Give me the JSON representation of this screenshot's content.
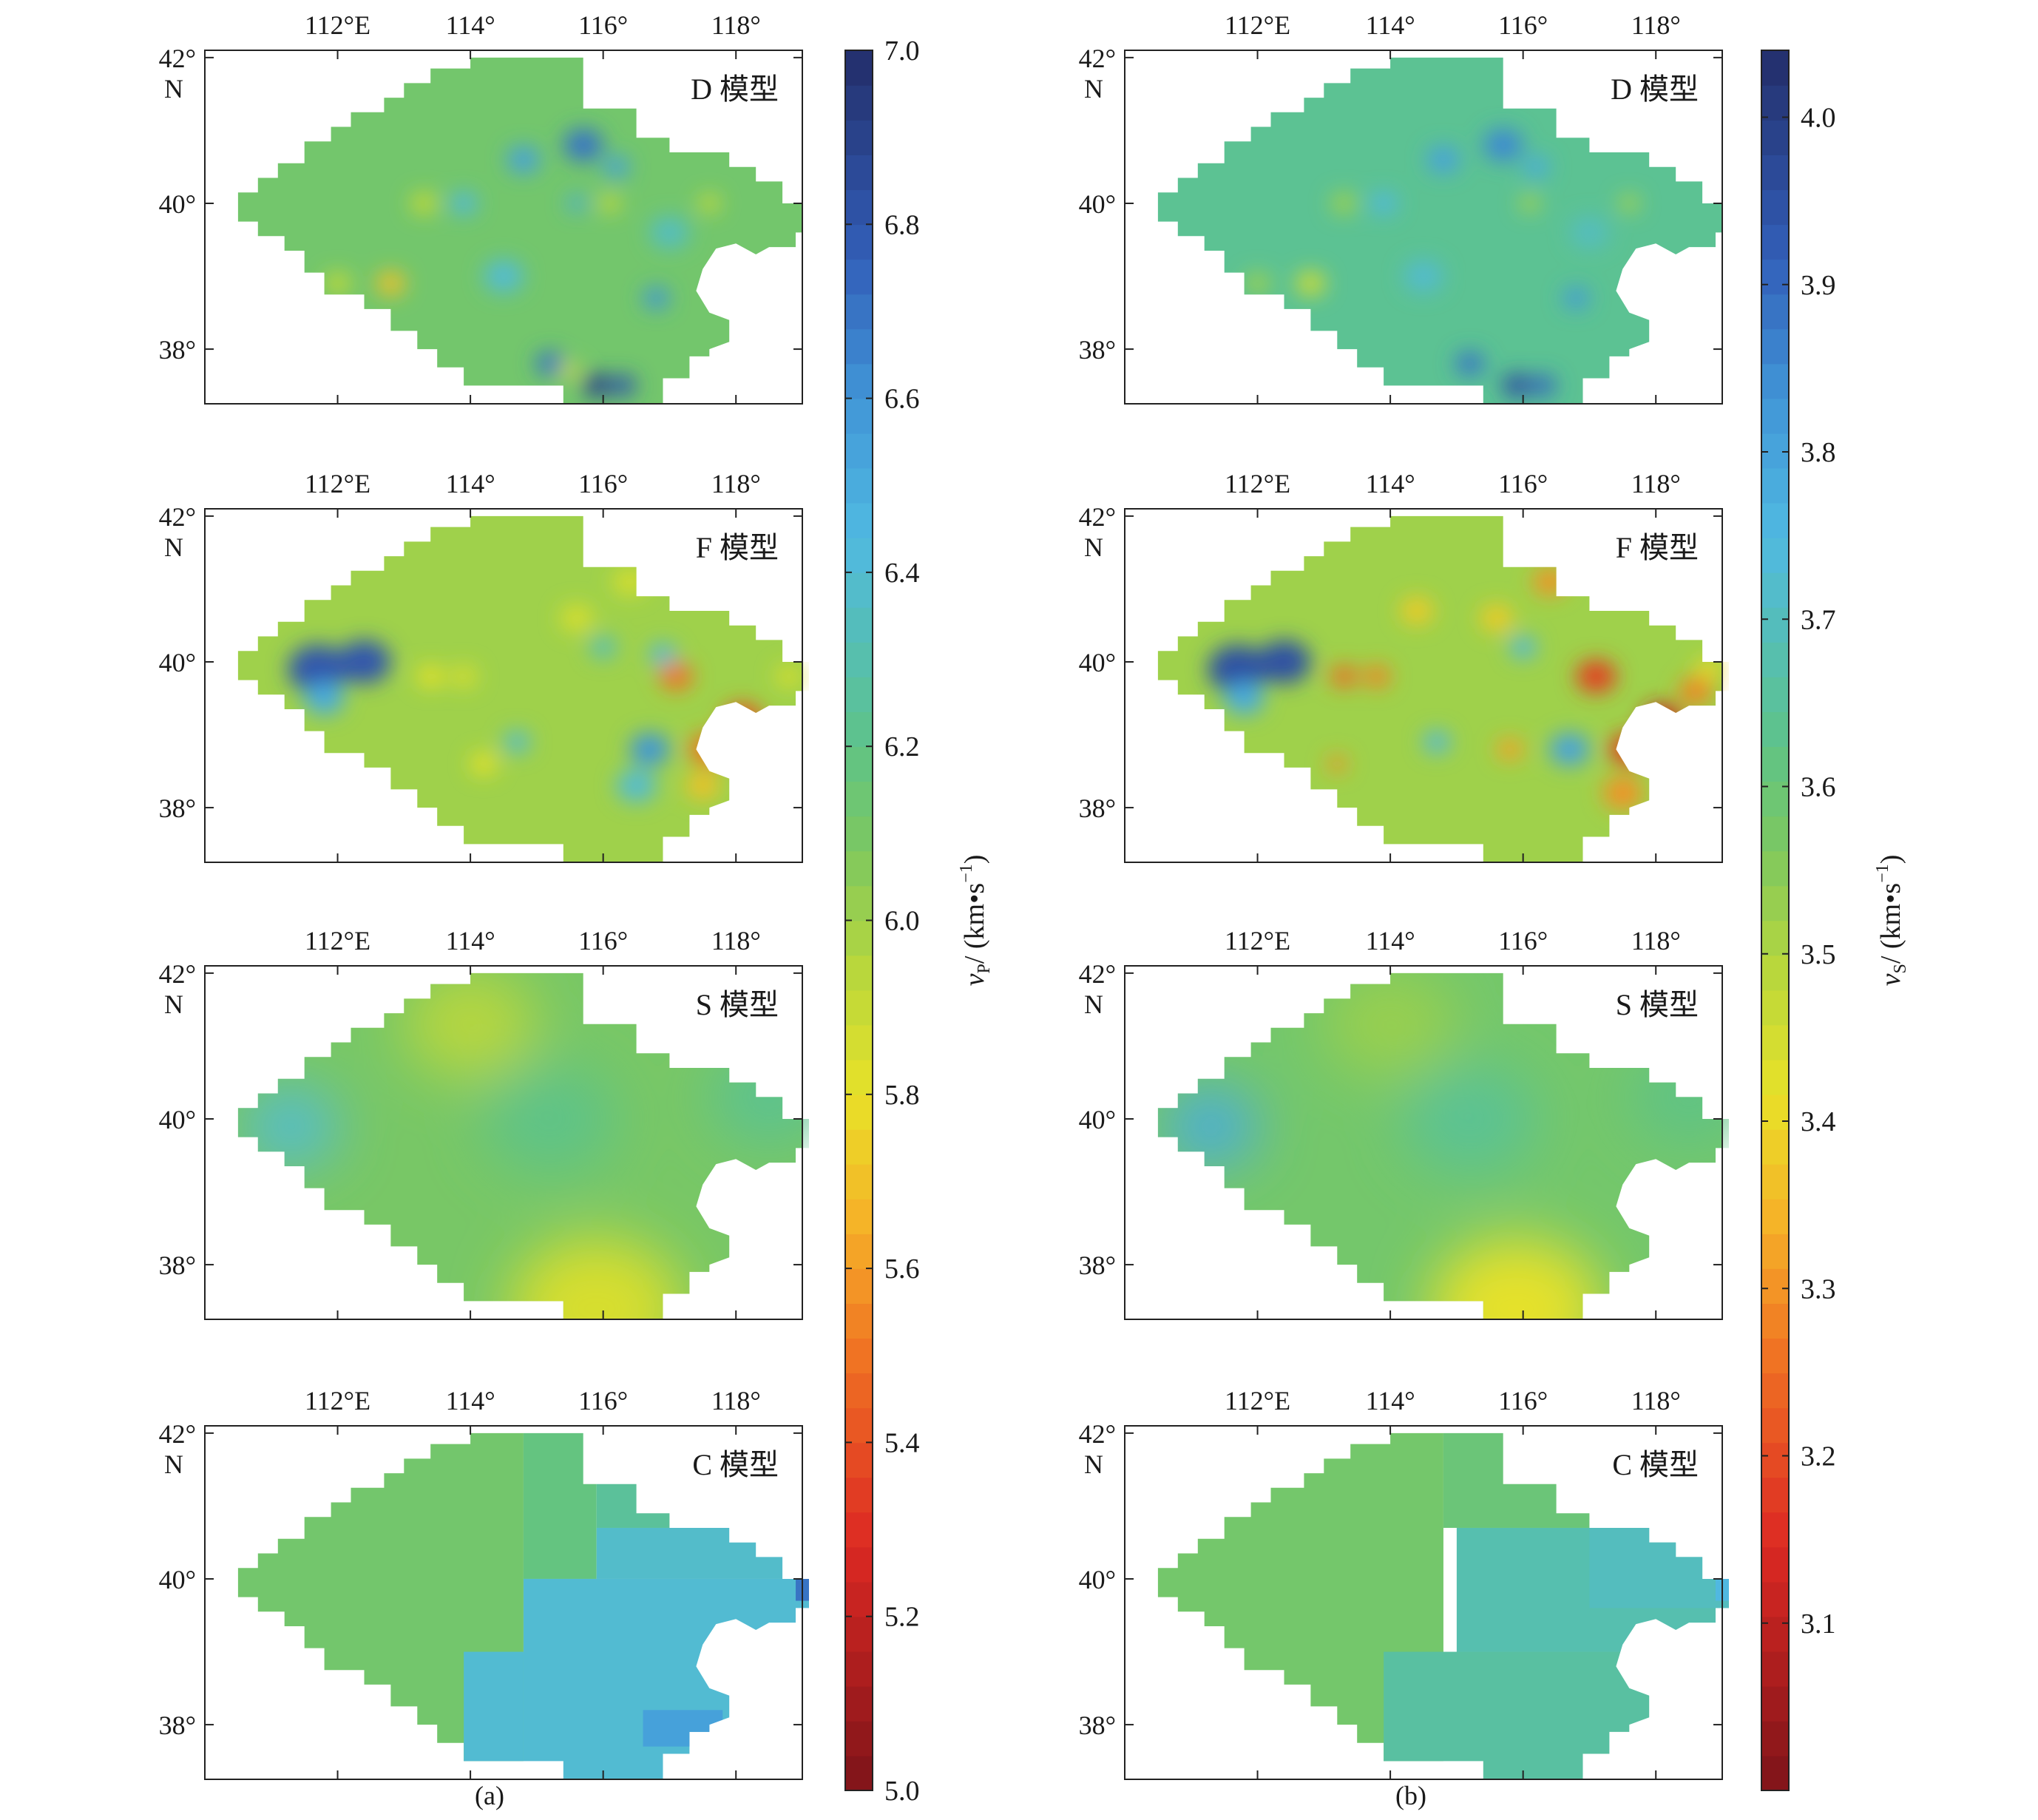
{
  "figure": {
    "panel_labels": [
      "(a)",
      "(b)"
    ]
  },
  "axes": {
    "x_ticks": [
      112,
      114,
      116,
      118
    ],
    "x_tick_labels": [
      "112°E",
      "114°",
      "116°",
      "118°"
    ],
    "y_ticks": [
      42,
      40,
      38
    ],
    "y_tick_labels": [
      "42°",
      "40°",
      "38°"
    ],
    "y_unit_label": "N"
  },
  "models": [
    "D 模型",
    "F 模型",
    "S 模型",
    "C 模型"
  ],
  "chart_data": [
    {
      "type": "heatmap",
      "panel": "(a)",
      "quantity": "vP",
      "colorbar": {
        "label_symbol": "v",
        "label_subscript": "P",
        "label_unit": "/ (km•s",
        "label_exp": "−1",
        "label_close": ")",
        "min": 5.0,
        "max": 7.0,
        "ticks": [
          5.0,
          5.2,
          5.4,
          5.6,
          5.8,
          6.0,
          6.2,
          6.4,
          6.6,
          6.8,
          7.0
        ],
        "tick_labels": [
          "5.0",
          "5.2",
          "5.4",
          "5.6",
          "5.8",
          "6.0",
          "6.2",
          "6.4",
          "6.6",
          "6.8",
          "7.0"
        ]
      },
      "maps": [
        {
          "model": "D 模型",
          "base": 6.12,
          "anomalies": [
            {
              "lon": 114.8,
              "lat": 40.6,
              "v": 6.55,
              "r": 0.25
            },
            {
              "lon": 115.7,
              "lat": 40.8,
              "v": 6.7,
              "r": 0.3
            },
            {
              "lon": 116.2,
              "lat": 40.5,
              "v": 6.55,
              "r": 0.2
            },
            {
              "lon": 113.9,
              "lat": 40.0,
              "v": 6.45,
              "r": 0.2
            },
            {
              "lon": 115.6,
              "lat": 40.0,
              "v": 6.5,
              "r": 0.15
            },
            {
              "lon": 116.1,
              "lat": 40.0,
              "v": 5.85,
              "r": 0.15
            },
            {
              "lon": 117.6,
              "lat": 40.0,
              "v": 5.85,
              "r": 0.15
            },
            {
              "lon": 112.8,
              "lat": 38.9,
              "v": 5.7,
              "r": 0.22
            },
            {
              "lon": 112.0,
              "lat": 38.9,
              "v": 5.9,
              "r": 0.2
            },
            {
              "lon": 116.8,
              "lat": 38.7,
              "v": 6.6,
              "r": 0.2
            },
            {
              "lon": 115.2,
              "lat": 37.8,
              "v": 6.7,
              "r": 0.22
            },
            {
              "lon": 115.9,
              "lat": 37.5,
              "v": 6.9,
              "r": 0.22
            },
            {
              "lon": 116.3,
              "lat": 37.5,
              "v": 6.8,
              "r": 0.2
            },
            {
              "lon": 115.5,
              "lat": 37.7,
              "v": 5.85,
              "r": 0.15
            },
            {
              "lon": 113.3,
              "lat": 40.0,
              "v": 5.9,
              "r": 0.2
            },
            {
              "lon": 114.5,
              "lat": 39.0,
              "v": 6.4,
              "r": 0.3
            },
            {
              "lon": 117.0,
              "lat": 39.6,
              "v": 6.35,
              "r": 0.3
            }
          ]
        },
        {
          "model": "F 模型",
          "base": 6.0,
          "anomalies": [
            {
              "lon": 111.7,
              "lat": 39.9,
              "v": 6.8,
              "r": 0.45
            },
            {
              "lon": 112.4,
              "lat": 40.0,
              "v": 6.8,
              "r": 0.4
            },
            {
              "lon": 111.8,
              "lat": 39.5,
              "v": 6.5,
              "r": 0.3
            },
            {
              "lon": 117.1,
              "lat": 39.8,
              "v": 5.5,
              "r": 0.25
            },
            {
              "lon": 118.1,
              "lat": 39.2,
              "v": 5.4,
              "r": 0.3
            },
            {
              "lon": 117.6,
              "lat": 38.8,
              "v": 5.5,
              "r": 0.3
            },
            {
              "lon": 117.5,
              "lat": 38.3,
              "v": 5.7,
              "r": 0.25
            },
            {
              "lon": 116.7,
              "lat": 38.8,
              "v": 6.6,
              "r": 0.3
            },
            {
              "lon": 116.5,
              "lat": 38.3,
              "v": 6.4,
              "r": 0.3
            },
            {
              "lon": 114.7,
              "lat": 38.9,
              "v": 6.4,
              "r": 0.2
            },
            {
              "lon": 113.4,
              "lat": 39.8,
              "v": 5.8,
              "r": 0.2
            },
            {
              "lon": 113.9,
              "lat": 39.8,
              "v": 5.85,
              "r": 0.2
            },
            {
              "lon": 114.2,
              "lat": 38.6,
              "v": 5.8,
              "r": 0.2
            },
            {
              "lon": 116.0,
              "lat": 40.2,
              "v": 6.35,
              "r": 0.2
            },
            {
              "lon": 116.9,
              "lat": 40.1,
              "v": 6.45,
              "r": 0.2
            },
            {
              "lon": 115.6,
              "lat": 40.6,
              "v": 5.85,
              "r": 0.25
            },
            {
              "lon": 116.4,
              "lat": 41.1,
              "v": 5.85,
              "r": 0.25
            },
            {
              "lon": 118.8,
              "lat": 39.8,
              "v": 5.85,
              "r": 0.2
            }
          ]
        },
        {
          "model": "S 模型",
          "base": 6.1,
          "anomalies": [
            {
              "lon": 111.3,
              "lat": 39.9,
              "v": 6.4,
              "r": 0.7
            },
            {
              "lon": 115.9,
              "lat": 37.4,
              "v": 5.85,
              "r": 1.3
            },
            {
              "lon": 115.2,
              "lat": 40.0,
              "v": 6.2,
              "r": 1.0
            },
            {
              "lon": 118.5,
              "lat": 40.3,
              "v": 6.22,
              "r": 0.9
            },
            {
              "lon": 114.0,
              "lat": 41.3,
              "v": 5.95,
              "r": 1.0
            }
          ]
        },
        {
          "model": "C 模型",
          "blocks": [
            {
              "lon0": 110,
              "lon1": 114.8,
              "lat0": 36,
              "lat1": 43,
              "v": 6.12
            },
            {
              "lon0": 114.8,
              "lon1": 115.9,
              "lat0": 40.0,
              "lat1": 43,
              "v": 6.18
            },
            {
              "lon0": 115.9,
              "lon1": 120,
              "lat0": 40.7,
              "lat1": 43,
              "v": 6.25
            },
            {
              "lon0": 114.8,
              "lon1": 120,
              "lat0": 36,
              "lat1": 40.0,
              "v": 6.4
            },
            {
              "lon0": 115.9,
              "lon1": 120,
              "lat0": 40.0,
              "lat1": 40.7,
              "v": 6.38
            },
            {
              "lon0": 113.9,
              "lon1": 114.8,
              "lat0": 36,
              "lat1": 39.0,
              "v": 6.4
            },
            {
              "lon0": 118.9,
              "lon1": 120,
              "lat0": 39.7,
              "lat1": 40.1,
              "v": 6.7
            },
            {
              "lon0": 116.6,
              "lon1": 117.8,
              "lat0": 37.7,
              "lat1": 38.2,
              "v": 6.55
            }
          ]
        }
      ]
    },
    {
      "type": "heatmap",
      "panel": "(b)",
      "quantity": "vS",
      "colorbar": {
        "label_symbol": "v",
        "label_subscript": "S",
        "label_unit": "/ (km•s",
        "label_exp": "−1",
        "label_close": ")",
        "min": 3.0,
        "max": 4.04,
        "ticks": [
          3.1,
          3.2,
          3.3,
          3.4,
          3.5,
          3.6,
          3.7,
          3.8,
          3.9,
          4.0
        ],
        "tick_labels": [
          "3.1",
          "3.2",
          "3.3",
          "3.4",
          "3.5",
          "3.6",
          "3.7",
          "3.8",
          "3.9",
          "4.0"
        ]
      },
      "maps": [
        {
          "model": "D 模型",
          "base": 3.64,
          "anomalies": [
            {
              "lon": 114.8,
              "lat": 40.6,
              "v": 3.8,
              "r": 0.25
            },
            {
              "lon": 115.7,
              "lat": 40.8,
              "v": 3.85,
              "r": 0.3
            },
            {
              "lon": 116.2,
              "lat": 40.5,
              "v": 3.78,
              "r": 0.2
            },
            {
              "lon": 113.9,
              "lat": 40.0,
              "v": 3.75,
              "r": 0.2
            },
            {
              "lon": 116.1,
              "lat": 40.0,
              "v": 3.5,
              "r": 0.15
            },
            {
              "lon": 117.6,
              "lat": 40.0,
              "v": 3.5,
              "r": 0.15
            },
            {
              "lon": 112.8,
              "lat": 38.9,
              "v": 3.45,
              "r": 0.22
            },
            {
              "lon": 112.0,
              "lat": 38.9,
              "v": 3.52,
              "r": 0.2
            },
            {
              "lon": 116.8,
              "lat": 38.7,
              "v": 3.82,
              "r": 0.2
            },
            {
              "lon": 115.2,
              "lat": 37.8,
              "v": 3.88,
              "r": 0.22
            },
            {
              "lon": 115.9,
              "lat": 37.5,
              "v": 3.95,
              "r": 0.22
            },
            {
              "lon": 116.3,
              "lat": 37.5,
              "v": 3.9,
              "r": 0.2
            },
            {
              "lon": 113.3,
              "lat": 40.0,
              "v": 3.52,
              "r": 0.2
            },
            {
              "lon": 114.5,
              "lat": 39.0,
              "v": 3.72,
              "r": 0.3
            },
            {
              "lon": 117.0,
              "lat": 39.6,
              "v": 3.7,
              "r": 0.3
            }
          ]
        },
        {
          "model": "F 模型",
          "base": 3.52,
          "anomalies": [
            {
              "lon": 111.7,
              "lat": 39.9,
              "v": 3.95,
              "r": 0.45
            },
            {
              "lon": 112.4,
              "lat": 40.0,
              "v": 3.95,
              "r": 0.4
            },
            {
              "lon": 111.8,
              "lat": 39.5,
              "v": 3.78,
              "r": 0.3
            },
            {
              "lon": 117.1,
              "lat": 39.8,
              "v": 3.18,
              "r": 0.3
            },
            {
              "lon": 118.1,
              "lat": 39.2,
              "v": 3.12,
              "r": 0.3
            },
            {
              "lon": 117.6,
              "lat": 38.8,
              "v": 3.18,
              "r": 0.3
            },
            {
              "lon": 117.5,
              "lat": 38.2,
              "v": 3.3,
              "r": 0.3
            },
            {
              "lon": 118.6,
              "lat": 39.6,
              "v": 3.28,
              "r": 0.25
            },
            {
              "lon": 116.7,
              "lat": 38.8,
              "v": 3.8,
              "r": 0.3
            },
            {
              "lon": 114.7,
              "lat": 38.9,
              "v": 3.75,
              "r": 0.2
            },
            {
              "lon": 113.3,
              "lat": 39.8,
              "v": 3.25,
              "r": 0.2
            },
            {
              "lon": 113.8,
              "lat": 39.8,
              "v": 3.28,
              "r": 0.2
            },
            {
              "lon": 113.2,
              "lat": 38.6,
              "v": 3.3,
              "r": 0.15
            },
            {
              "lon": 115.8,
              "lat": 38.8,
              "v": 3.32,
              "r": 0.2
            },
            {
              "lon": 116.0,
              "lat": 40.2,
              "v": 3.75,
              "r": 0.2
            },
            {
              "lon": 115.6,
              "lat": 40.6,
              "v": 3.38,
              "r": 0.25
            },
            {
              "lon": 116.4,
              "lat": 41.1,
              "v": 3.3,
              "r": 0.25
            },
            {
              "lon": 114.4,
              "lat": 40.7,
              "v": 3.38,
              "r": 0.25
            },
            {
              "lon": 118.8,
              "lat": 39.9,
              "v": 3.4,
              "r": 0.2
            }
          ]
        },
        {
          "model": "S 模型",
          "base": 3.58,
          "anomalies": [
            {
              "lon": 111.3,
              "lat": 39.9,
              "v": 3.78,
              "r": 0.7
            },
            {
              "lon": 115.9,
              "lat": 37.4,
              "v": 3.42,
              "r": 1.3
            },
            {
              "lon": 115.2,
              "lat": 40.0,
              "v": 3.64,
              "r": 1.0
            },
            {
              "lon": 118.5,
              "lat": 40.3,
              "v": 3.62,
              "r": 0.9
            },
            {
              "lon": 114.0,
              "lat": 41.3,
              "v": 3.53,
              "r": 1.0
            }
          ]
        },
        {
          "model": "C 模型",
          "blocks": [
            {
              "lon0": 110,
              "lon1": 114.8,
              "lat0": 36,
              "lat1": 43,
              "v": 3.58
            },
            {
              "lon0": 114.8,
              "lon1": 120,
              "lat0": 40.7,
              "lat1": 43,
              "v": 3.6
            },
            {
              "lon0": 113.9,
              "lon1": 120,
              "lat0": 36,
              "lat1": 39.0,
              "v": 3.66
            },
            {
              "lon0": 115.0,
              "lon1": 120,
              "lat0": 39.0,
              "lat1": 40.7,
              "v": 3.68
            },
            {
              "lon0": 117.0,
              "lon1": 120,
              "lat0": 39.6,
              "lat1": 40.8,
              "v": 3.7
            },
            {
              "lon0": 118.9,
              "lon1": 120,
              "lat0": 39.7,
              "lat1": 40.1,
              "v": 3.75
            }
          ]
        }
      ]
    }
  ]
}
